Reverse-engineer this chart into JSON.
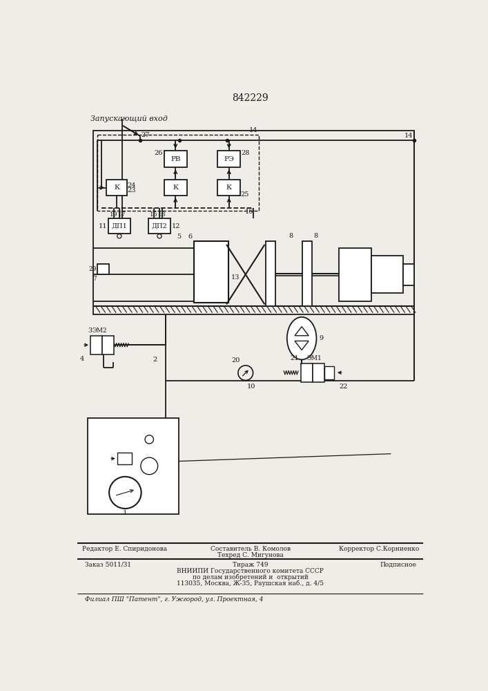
{
  "title": "842229",
  "zapusk_label": "Запускающий вход",
  "bg_color": "#f0ede8",
  "line_color": "#1a1a1a",
  "bottom_texts": {
    "left": "Редактор Е. Спиридонова",
    "center_top": "Составитель В. Комолов",
    "center_mid": "Техред С. Мигунова",
    "right": "Корректор С.Корниенко",
    "order": "Заказ 5011/31",
    "tirazh": "Тираж 749",
    "podpisnoe": "Подписное",
    "vniipii_1": "ВНИИПИ Государственного комитета СССР",
    "vniipii_2": "по делам изобретений и  открытий",
    "vniipii_3": "113035, Москва, Ж-35, Раушская наб., д. 4/5",
    "filial": "Филиал ПШ \"Патент\", г. Ужгород, ул. Проектная, 4"
  }
}
